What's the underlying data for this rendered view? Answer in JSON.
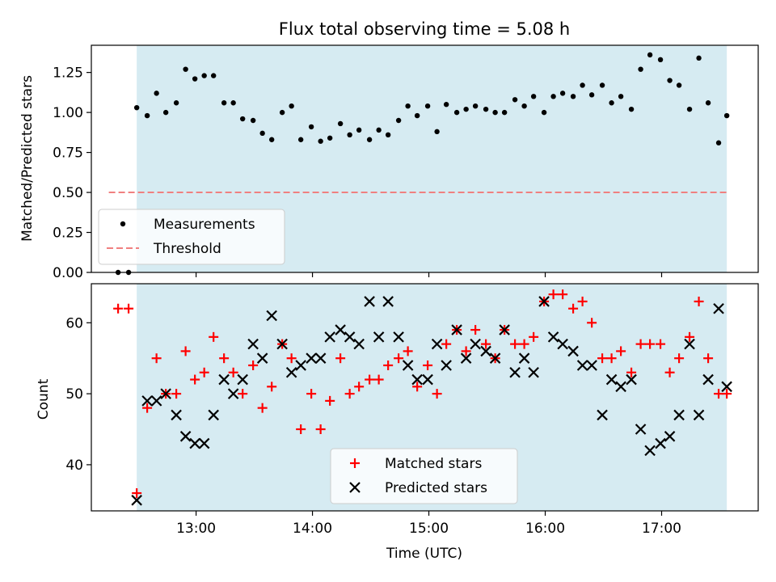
{
  "chart_data": [
    {
      "type": "scatter",
      "title": "Flux total observing time = 5.08 h",
      "xlabel": "",
      "ylabel": "Matched/Predicted stars",
      "ylim": [
        0,
        1.42
      ],
      "xlim": [
        12.1,
        17.83
      ],
      "yticks": [
        0.0,
        0.25,
        0.5,
        0.75,
        1.0,
        1.25
      ],
      "ytick_labels": [
        "0.00",
        "0.25",
        "0.50",
        "0.75",
        "1.00",
        "1.25"
      ],
      "shaded_span": [
        12.49,
        17.56
      ],
      "shaded_color": "#add8e6",
      "threshold": {
        "name": "Threshold",
        "value": 0.5,
        "x_range": [
          12.25,
          17.56
        ],
        "color": "#f08080"
      },
      "legend_location": "lower-left",
      "series": [
        {
          "name": "Measurements",
          "color": "#000000",
          "marker": "dot",
          "x": [
            12.33,
            12.42,
            12.49,
            12.58,
            12.66,
            12.74,
            12.83,
            12.91,
            12.99,
            13.07,
            13.15,
            13.24,
            13.32,
            13.4,
            13.49,
            13.57,
            13.65,
            13.74,
            13.82,
            13.9,
            13.99,
            14.07,
            14.15,
            14.24,
            14.32,
            14.4,
            14.49,
            14.57,
            14.65,
            14.74,
            14.82,
            14.9,
            14.99,
            15.07,
            15.15,
            15.24,
            15.32,
            15.4,
            15.49,
            15.57,
            15.65,
            15.74,
            15.82,
            15.9,
            15.99,
            16.07,
            16.15,
            16.24,
            16.32,
            16.4,
            16.49,
            16.57,
            16.65,
            16.74,
            16.82,
            16.9,
            16.99,
            17.07,
            17.15,
            17.24,
            17.32,
            17.4,
            17.49,
            17.56
          ],
          "y": [
            0.0,
            0.0,
            1.03,
            0.98,
            1.12,
            1.0,
            1.06,
            1.27,
            1.21,
            1.23,
            1.23,
            1.06,
            1.06,
            0.96,
            0.95,
            0.87,
            0.83,
            1.0,
            1.04,
            0.83,
            0.91,
            0.82,
            0.84,
            0.93,
            0.86,
            0.89,
            0.83,
            0.89,
            0.86,
            0.95,
            1.04,
            0.98,
            1.04,
            0.88,
            1.05,
            1.0,
            1.02,
            1.04,
            1.02,
            1.0,
            1.0,
            1.08,
            1.04,
            1.1,
            1.0,
            1.1,
            1.12,
            1.1,
            1.17,
            1.11,
            1.17,
            1.06,
            1.1,
            1.02,
            1.27,
            1.36,
            1.33,
            1.2,
            1.17,
            1.02,
            1.34,
            1.06,
            0.81,
            0.98
          ]
        }
      ]
    },
    {
      "type": "scatter",
      "title": "",
      "xlabel": "Time (UTC)",
      "ylabel": "Count",
      "ylim": [
        33.5,
        65.5
      ],
      "xlim": [
        12.1,
        17.83
      ],
      "yticks": [
        40,
        50,
        60
      ],
      "ytick_labels": [
        "40",
        "50",
        "60"
      ],
      "xticks": [
        13,
        14,
        15,
        16,
        17
      ],
      "xtick_labels": [
        "13:00",
        "14:00",
        "15:00",
        "16:00",
        "17:00"
      ],
      "shaded_span": [
        12.49,
        17.56
      ],
      "shaded_color": "#add8e6",
      "legend_location": "lower-center",
      "series": [
        {
          "name": "Matched stars",
          "color": "#ff0000",
          "marker": "plus",
          "x": [
            12.33,
            12.42,
            12.49,
            12.58,
            12.66,
            12.74,
            12.83,
            12.91,
            12.99,
            13.07,
            13.15,
            13.24,
            13.32,
            13.4,
            13.49,
            13.57,
            13.65,
            13.74,
            13.82,
            13.9,
            13.99,
            14.07,
            14.15,
            14.24,
            14.32,
            14.4,
            14.49,
            14.57,
            14.65,
            14.74,
            14.82,
            14.9,
            14.99,
            15.07,
            15.15,
            15.24,
            15.32,
            15.4,
            15.49,
            15.57,
            15.65,
            15.74,
            15.82,
            15.9,
            15.99,
            16.07,
            16.15,
            16.24,
            16.32,
            16.4,
            16.49,
            16.57,
            16.65,
            16.74,
            16.82,
            16.9,
            16.99,
            17.07,
            17.15,
            17.24,
            17.32,
            17.4,
            17.49,
            17.56
          ],
          "y": [
            62,
            62,
            36,
            48,
            55,
            50,
            50,
            56,
            52,
            53,
            58,
            55,
            53,
            50,
            54,
            48,
            51,
            57,
            55,
            45,
            50,
            45,
            49,
            55,
            50,
            51,
            52,
            52,
            54,
            55,
            56,
            51,
            54,
            50,
            57,
            59,
            56,
            59,
            57,
            55,
            59,
            57,
            57,
            58,
            63,
            64,
            64,
            62,
            63,
            60,
            55,
            55,
            56,
            53,
            57,
            57,
            57,
            53,
            55,
            58,
            63,
            55,
            50,
            50
          ]
        },
        {
          "name": "Predicted stars",
          "color": "#000000",
          "marker": "x",
          "x": [
            12.49,
            12.58,
            12.66,
            12.74,
            12.83,
            12.91,
            12.99,
            13.07,
            13.15,
            13.24,
            13.32,
            13.4,
            13.49,
            13.57,
            13.65,
            13.74,
            13.82,
            13.9,
            13.99,
            14.07,
            14.15,
            14.24,
            14.32,
            14.4,
            14.49,
            14.57,
            14.65,
            14.74,
            14.82,
            14.9,
            14.99,
            15.07,
            15.15,
            15.24,
            15.32,
            15.4,
            15.49,
            15.57,
            15.65,
            15.74,
            15.82,
            15.9,
            15.99,
            16.07,
            16.15,
            16.24,
            16.32,
            16.4,
            16.49,
            16.57,
            16.65,
            16.74,
            16.82,
            16.9,
            16.99,
            17.07,
            17.15,
            17.24,
            17.32,
            17.4,
            17.49,
            17.56
          ],
          "y": [
            35,
            49,
            49,
            50,
            47,
            44,
            43,
            43,
            47,
            52,
            50,
            52,
            57,
            55,
            61,
            57,
            53,
            54,
            55,
            55,
            58,
            59,
            58,
            57,
            63,
            58,
            63,
            58,
            54,
            52,
            52,
            57,
            54,
            59,
            55,
            57,
            56,
            55,
            59,
            53,
            55,
            53,
            63,
            58,
            57,
            56,
            54,
            54,
            47,
            52,
            51,
            52,
            45,
            42,
            43,
            44,
            47,
            57,
            47,
            52,
            62,
            51
          ]
        }
      ]
    }
  ]
}
